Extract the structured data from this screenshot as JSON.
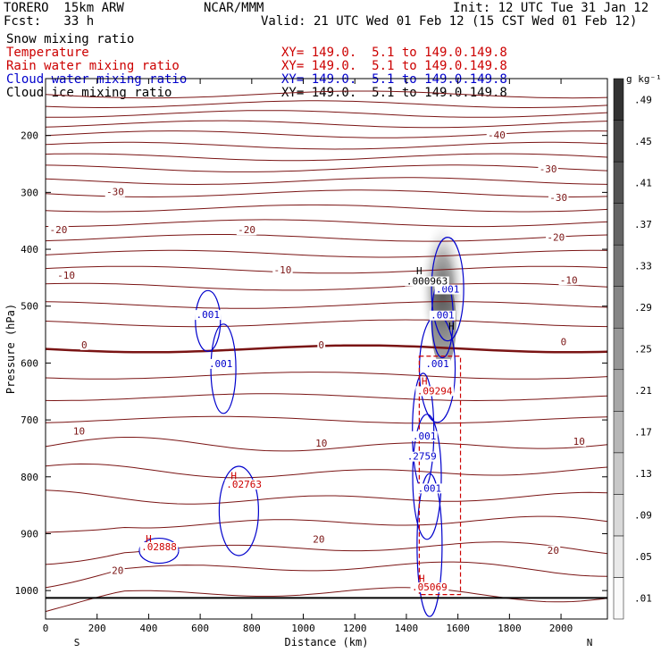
{
  "header": {
    "model": "TORERO  15km ARW",
    "org": "NCAR/MMM",
    "init": "Init: 12 UTC Tue 31 Jan 12",
    "fcst": "Fcst:   33 h",
    "valid": "Valid: 21 UTC Wed 01 Feb 12 (15 CST Wed 01 Feb 12)"
  },
  "fields": [
    {
      "name": "Snow mixing ratio",
      "xy": "",
      "color": "#000000"
    },
    {
      "name": "Temperature",
      "xy": "XY= 149.0.  5.1 to 149.0.149.8",
      "color": "#cc0000"
    },
    {
      "name": "Rain water mixing ratio",
      "xy": "XY= 149.0.  5.1 to 149.0.149.8",
      "color": "#cc0000"
    },
    {
      "name": "Cloud water mixing ratio",
      "xy": "XY= 149.0.  5.1 to 149.0.149.8",
      "color": "#0000cc"
    },
    {
      "name": "Cloud ice mixing ratio",
      "xy": "XY= 149.0.  5.1 to 149.0.149.8",
      "color": "#000000"
    }
  ],
  "chart_data": {
    "type": "contour",
    "xlabel": "Distance (km)",
    "ylabel": "Pressure (hPa)",
    "xlim": [
      0,
      2180
    ],
    "ylim": [
      1050,
      100
    ],
    "x_ticks": [
      0,
      200,
      400,
      600,
      800,
      1000,
      1200,
      1400,
      1600,
      1800,
      2000
    ],
    "y_ticks": [
      200,
      300,
      400,
      500,
      600,
      700,
      800,
      900,
      1000
    ],
    "x_end_labels": {
      "left": "S",
      "right": "N"
    },
    "colorbar": {
      "unit": "g kg⁻¹",
      "levels": [
        ".01",
        ".05",
        ".09",
        ".13",
        ".17",
        ".21",
        ".25",
        ".29",
        ".33",
        ".37",
        ".41",
        ".45",
        ".49"
      ]
    },
    "temperature_labels": [
      {
        "x": 1750,
        "p": 205,
        "text": "-40"
      },
      {
        "x": 1950,
        "p": 265,
        "text": "-30"
      },
      {
        "x": 270,
        "p": 305,
        "text": "-30"
      },
      {
        "x": 1990,
        "p": 315,
        "text": "-30"
      },
      {
        "x": 50,
        "p": 372,
        "text": "-20"
      },
      {
        "x": 780,
        "p": 372,
        "text": "-20"
      },
      {
        "x": 1980,
        "p": 385,
        "text": "-20"
      },
      {
        "x": 80,
        "p": 452,
        "text": "-10"
      },
      {
        "x": 920,
        "p": 442,
        "text": "-10"
      },
      {
        "x": 2030,
        "p": 460,
        "text": "-10"
      },
      {
        "x": 150,
        "p": 574,
        "text": "0"
      },
      {
        "x": 1070,
        "p": 574,
        "text": "0"
      },
      {
        "x": 2010,
        "p": 569,
        "text": "0"
      },
      {
        "x": 130,
        "p": 726,
        "text": "10"
      },
      {
        "x": 1070,
        "p": 747,
        "text": "10"
      },
      {
        "x": 2070,
        "p": 744,
        "text": "10"
      },
      {
        "x": 280,
        "p": 971,
        "text": "20"
      },
      {
        "x": 1060,
        "p": 916,
        "text": "20"
      },
      {
        "x": 1970,
        "p": 935,
        "text": "20"
      }
    ],
    "cloud_water_labels": [
      {
        "x": 630,
        "p": 521,
        "text": ".001"
      },
      {
        "x": 680,
        "p": 607,
        "text": ".001"
      },
      {
        "x": 1560,
        "p": 476,
        "text": ".001"
      },
      {
        "x": 1540,
        "p": 522,
        "text": ".001"
      },
      {
        "x": 1520,
        "p": 607,
        "text": ".001"
      },
      {
        "x": 1470,
        "p": 734,
        "text": ".001"
      },
      {
        "x": 1490,
        "p": 826,
        "text": ".001"
      },
      {
        "x": 1460,
        "p": 770,
        "text": ".2759"
      }
    ],
    "rain_labels": [
      {
        "x": 1510,
        "p": 655,
        "text": ".09294"
      },
      {
        "x": 1490,
        "p": 1000,
        "text": ".05069"
      },
      {
        "x": 770,
        "p": 819,
        "text": ".02763"
      },
      {
        "x": 440,
        "p": 929,
        "text": ".02888"
      }
    ],
    "snow_labels": [
      {
        "x": 1480,
        "p": 462,
        "text": ".000963"
      }
    ],
    "extrema_labels": [
      {
        "x": 1450,
        "p": 444,
        "text": "H",
        "color": "#000000"
      },
      {
        "x": 1470,
        "p": 638,
        "text": "H",
        "color": "#cc0000"
      },
      {
        "x": 1460,
        "p": 985,
        "text": "H",
        "color": "#cc0000"
      },
      {
        "x": 730,
        "p": 804,
        "text": "H",
        "color": "#cc0000"
      },
      {
        "x": 400,
        "p": 915,
        "text": "H",
        "color": "#cc0000"
      },
      {
        "x": 1575,
        "p": 541,
        "text": "H",
        "color": "#000000"
      }
    ]
  }
}
